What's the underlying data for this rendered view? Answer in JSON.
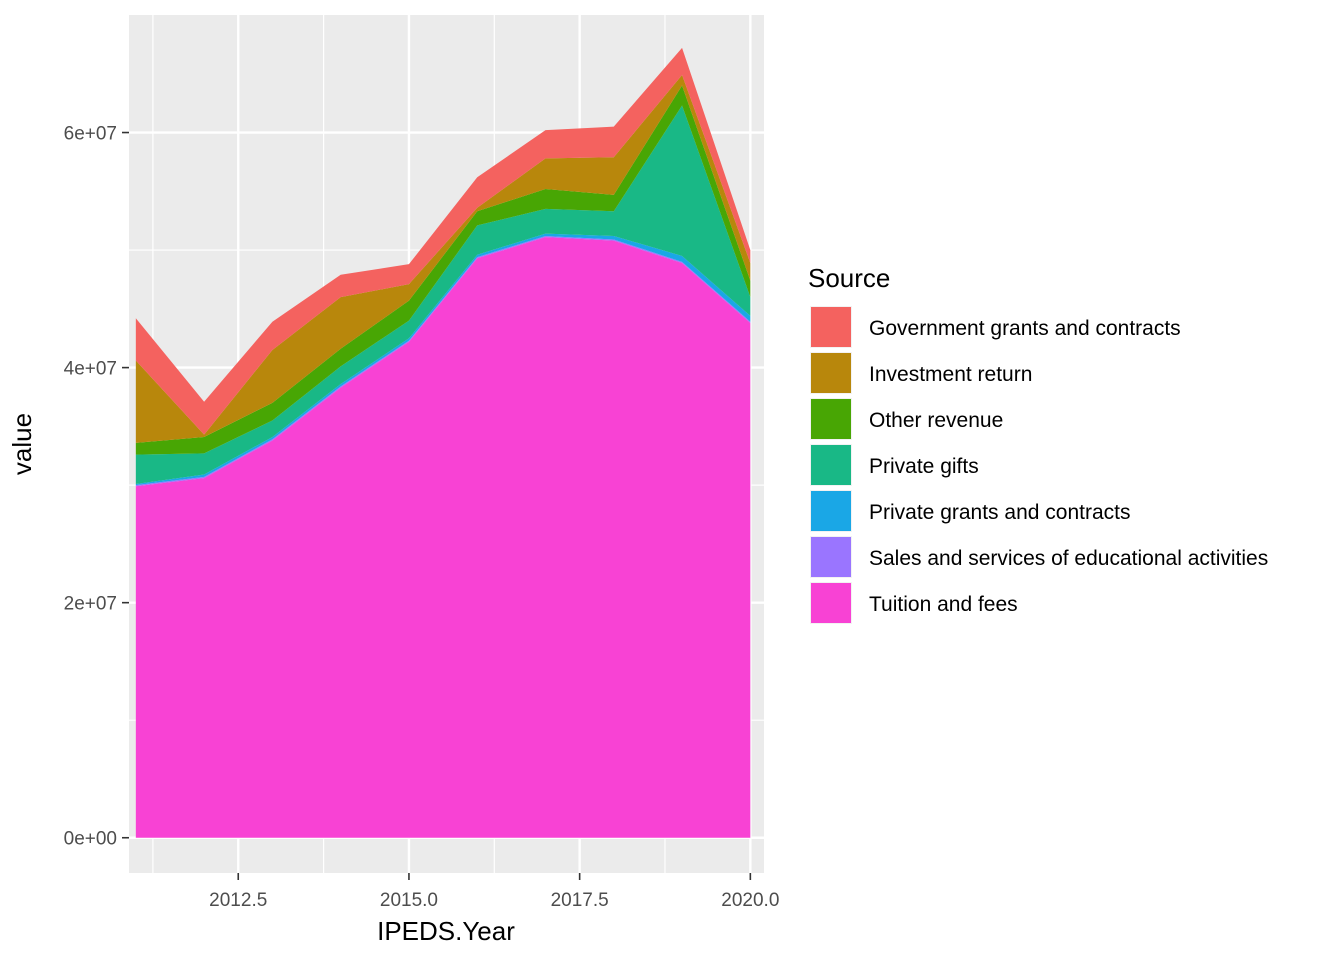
{
  "chart_data": {
    "type": "area",
    "stacked": true,
    "title": "",
    "xlabel": "IPEDS.Year",
    "ylabel": "value",
    "xlim": [
      2010.9,
      2020.2
    ],
    "ylim": [
      -3000000,
      70000000
    ],
    "x_ticks": [
      2012.5,
      2015.0,
      2017.5,
      2020.0
    ],
    "x_tick_labels": [
      "2012.5",
      "2015.0",
      "2017.5",
      "2020.0"
    ],
    "y_ticks": [
      0,
      20000000,
      40000000,
      60000000
    ],
    "y_tick_labels": [
      "0e+00",
      "2e+07",
      "4e+07",
      "6e+07"
    ],
    "grid": true,
    "legend": {
      "title": "Source",
      "placement": "right"
    },
    "x": [
      2011,
      2012,
      2013,
      2014,
      2015,
      2016,
      2017,
      2018,
      2019,
      2020
    ],
    "series": [
      {
        "name": "Tuition and fees",
        "color": "#F842D4",
        "values": [
          29900000,
          30600000,
          33800000,
          38300000,
          42200000,
          49300000,
          51100000,
          50800000,
          48900000,
          43800000
        ]
      },
      {
        "name": "Sales and services of educational activities",
        "color": "#9A75FF",
        "values": [
          100000,
          100000,
          100000,
          100000,
          100000,
          100000,
          100000,
          100000,
          100000,
          100000
        ]
      },
      {
        "name": "Private grants and contracts",
        "color": "#1AA7E6",
        "values": [
          100000,
          200000,
          200000,
          200000,
          200000,
          200000,
          200000,
          300000,
          500000,
          500000
        ]
      },
      {
        "name": "Private gifts",
        "color": "#19B886",
        "values": [
          2500000,
          1800000,
          1400000,
          1500000,
          1500000,
          2500000,
          2100000,
          2100000,
          12800000,
          1600000
        ]
      },
      {
        "name": "Other revenue",
        "color": "#48A604",
        "values": [
          1000000,
          1400000,
          1500000,
          1500000,
          1700000,
          1200000,
          1700000,
          1400000,
          1700000,
          1400000
        ]
      },
      {
        "name": "Investment return",
        "color": "#B8870C",
        "values": [
          7000000,
          200000,
          4500000,
          4400000,
          1400000,
          300000,
          2600000,
          3200000,
          900000,
          1500000
        ]
      },
      {
        "name": "Government grants and contracts",
        "color": "#F4625F",
        "values": [
          3600000,
          2800000,
          2400000,
          1900000,
          1700000,
          2600000,
          2400000,
          2600000,
          2300000,
          1100000
        ]
      }
    ],
    "legend_order": [
      "Government grants and contracts",
      "Investment return",
      "Other revenue",
      "Private gifts",
      "Private grants and contracts",
      "Sales and services of educational activities",
      "Tuition and fees"
    ]
  }
}
